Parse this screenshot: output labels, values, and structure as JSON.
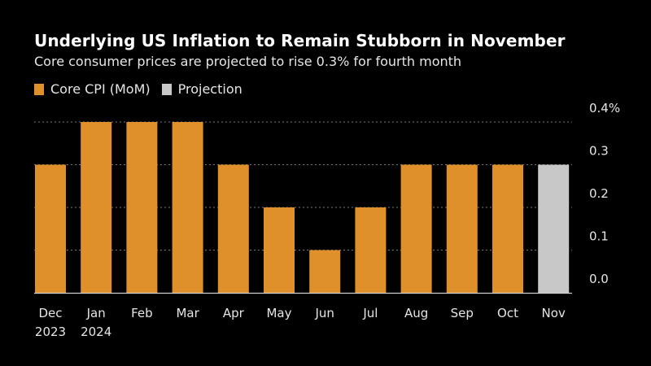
{
  "chart_data": {
    "type": "bar",
    "title": "Underlying US Inflation to Remain Stubborn in November",
    "subtitle": "Core consumer prices are projected to rise 0.3% for fourth month",
    "categories": [
      "Dec",
      "Jan",
      "Feb",
      "Mar",
      "Apr",
      "May",
      "Jun",
      "Jul",
      "Aug",
      "Sep",
      "Oct",
      "Nov"
    ],
    "category_years": [
      "2023",
      "2024",
      "",
      "",
      "",
      "",
      "",
      "",
      "",
      "",
      "",
      ""
    ],
    "values": [
      0.3,
      0.4,
      0.4,
      0.4,
      0.3,
      0.2,
      0.1,
      0.2,
      0.3,
      0.3,
      0.3,
      0.3
    ],
    "series_kind": [
      "actual",
      "actual",
      "actual",
      "actual",
      "actual",
      "actual",
      "actual",
      "actual",
      "actual",
      "actual",
      "actual",
      "projection"
    ],
    "legend": [
      {
        "name": "Core CPI (MoM)",
        "color": "#e0902a"
      },
      {
        "name": "Projection",
        "color": "#c8c8c8"
      }
    ],
    "y_ticks": [
      {
        "value": 0.0,
        "label": "0.0"
      },
      {
        "value": 0.1,
        "label": "0.1"
      },
      {
        "value": 0.2,
        "label": "0.2"
      },
      {
        "value": 0.3,
        "label": "0.3"
      },
      {
        "value": 0.4,
        "label": "0.4%"
      }
    ],
    "ylim": [
      0,
      0.4
    ],
    "y_axis_position": "right",
    "grid": true,
    "legend_position": "top-left",
    "xlabel": "",
    "ylabel": ""
  }
}
